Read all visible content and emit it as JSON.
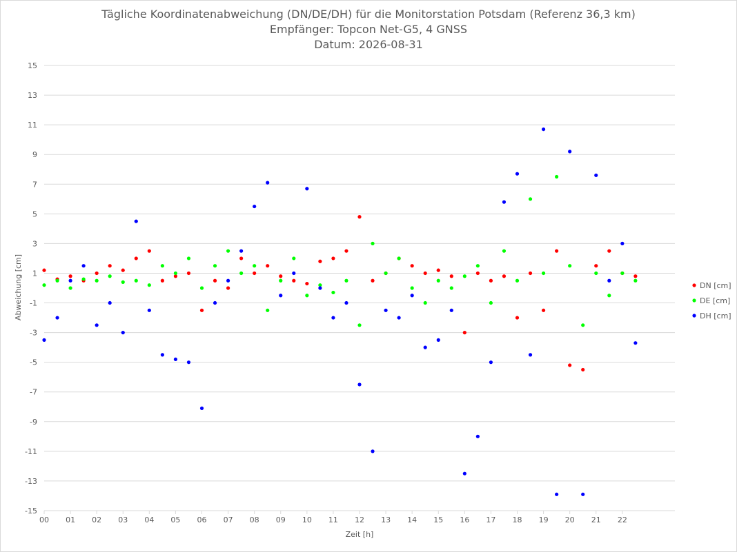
{
  "chart_data": {
    "type": "scatter",
    "title": "Tägliche Koordinatenabweichung (DN/DE/DH) für die Monitorstation Potsdam (Referenz 36,3 km)",
    "subtitle_1": "Empfänger: Topcon Net-G5, 4 GNSS",
    "subtitle_2": "Datum: 2026-08-31",
    "xlabel": "Zeit [h]",
    "ylabel": "Abweichung [cm]",
    "xlim": [
      0,
      24
    ],
    "ylim": [
      -15,
      15
    ],
    "x_ticks": [
      "00",
      "01",
      "02",
      "03",
      "04",
      "05",
      "06",
      "07",
      "08",
      "09",
      "10",
      "11",
      "12",
      "13",
      "14",
      "15",
      "16",
      "17",
      "18",
      "19",
      "20",
      "21",
      "22"
    ],
    "y_ticks": [
      "15",
      "13",
      "11",
      "9",
      "7",
      "5",
      "3",
      "1",
      "-1",
      "-3",
      "-5",
      "-7",
      "-9",
      "-11",
      "-13",
      "-15"
    ],
    "grid": "horizontal",
    "legend_position": "right",
    "colors": {
      "DN": "#ff0000",
      "DE": "#00ff00",
      "DH": "#0000ff",
      "grid": "#d9d9d9",
      "text": "#595959"
    },
    "series": [
      {
        "name": "DN [cm]",
        "color": "#ff0000",
        "x": [
          0.0,
          0.5,
          1.0,
          1.5,
          2.0,
          2.5,
          3.0,
          3.5,
          4.0,
          4.5,
          5.0,
          5.5,
          6.0,
          6.5,
          7.0,
          7.5,
          8.0,
          8.5,
          9.0,
          9.5,
          10.0,
          10.5,
          11.0,
          11.5,
          12.0,
          12.5,
          13.0,
          13.5,
          14.0,
          14.5,
          15.0,
          15.5,
          16.0,
          16.5,
          17.0,
          17.5,
          18.0,
          18.5,
          19.0,
          19.5,
          20.0,
          20.5,
          21.0,
          21.5,
          22.0,
          22.5
        ],
        "y": [
          1.2,
          0.6,
          0.8,
          0.5,
          1.0,
          1.5,
          1.2,
          2.0,
          2.5,
          0.5,
          0.8,
          1.0,
          -1.5,
          0.5,
          0.0,
          2.0,
          1.0,
          1.5,
          0.8,
          0.5,
          0.3,
          1.8,
          2.0,
          2.5,
          4.8,
          0.5,
          1.0,
          2.0,
          1.5,
          1.0,
          1.2,
          0.8,
          -3.0,
          1.0,
          0.5,
          0.8,
          -2.0,
          1.0,
          -1.5,
          2.5,
          -5.2,
          -5.5,
          1.5,
          2.5,
          1.0,
          0.8
        ]
      },
      {
        "name": "DE [cm]",
        "color": "#00ff00",
        "x": [
          0.0,
          0.5,
          1.0,
          1.5,
          2.0,
          2.5,
          3.0,
          3.5,
          4.0,
          4.5,
          5.0,
          5.5,
          6.0,
          6.5,
          7.0,
          7.5,
          8.0,
          8.5,
          9.0,
          9.5,
          10.0,
          10.5,
          11.0,
          11.5,
          12.0,
          12.5,
          13.0,
          13.5,
          14.0,
          14.5,
          15.0,
          15.5,
          16.0,
          16.5,
          17.0,
          17.5,
          18.0,
          18.5,
          19.0,
          19.5,
          20.0,
          20.5,
          21.0,
          21.5,
          22.0,
          22.5
        ],
        "y": [
          0.2,
          0.5,
          0.0,
          0.6,
          0.5,
          0.8,
          0.4,
          0.5,
          0.2,
          1.5,
          1.0,
          2.0,
          0.0,
          1.5,
          2.5,
          1.0,
          1.5,
          -1.5,
          0.5,
          2.0,
          -0.5,
          0.2,
          -0.3,
          0.5,
          -2.5,
          3.0,
          1.0,
          2.0,
          0.0,
          -1.0,
          0.5,
          0.0,
          0.8,
          1.5,
          -1.0,
          2.5,
          0.5,
          6.0,
          1.0,
          7.5,
          1.5,
          -2.5,
          1.0,
          -0.5,
          1.0,
          0.5
        ]
      },
      {
        "name": "DH [cm]",
        "color": "#0000ff",
        "x": [
          0.0,
          0.5,
          1.0,
          1.5,
          2.0,
          2.5,
          3.0,
          3.5,
          4.0,
          4.5,
          5.0,
          5.5,
          6.0,
          6.5,
          7.0,
          7.5,
          8.0,
          8.5,
          9.0,
          9.5,
          10.0,
          10.5,
          11.0,
          11.5,
          12.0,
          12.5,
          13.0,
          13.5,
          14.0,
          14.5,
          15.0,
          15.5,
          16.0,
          16.5,
          17.0,
          17.5,
          18.0,
          18.5,
          19.0,
          19.5,
          20.0,
          20.5,
          21.0,
          21.5,
          22.0,
          22.5
        ],
        "y": [
          -3.5,
          -2.0,
          0.5,
          1.5,
          -2.5,
          -1.0,
          -3.0,
          4.5,
          -1.5,
          -4.5,
          -4.8,
          -5.0,
          -8.1,
          -1.0,
          0.5,
          2.5,
          5.5,
          7.1,
          -0.5,
          1.0,
          6.7,
          0.0,
          -2.0,
          -1.0,
          -6.5,
          -11.0,
          -1.5,
          -2.0,
          -0.5,
          -4.0,
          -3.5,
          -1.5,
          -12.5,
          -10.0,
          -5.0,
          5.8,
          7.7,
          -4.5,
          10.7,
          -13.9,
          9.2,
          -13.9,
          7.6,
          0.5,
          3.0,
          -3.7
        ]
      }
    ]
  }
}
